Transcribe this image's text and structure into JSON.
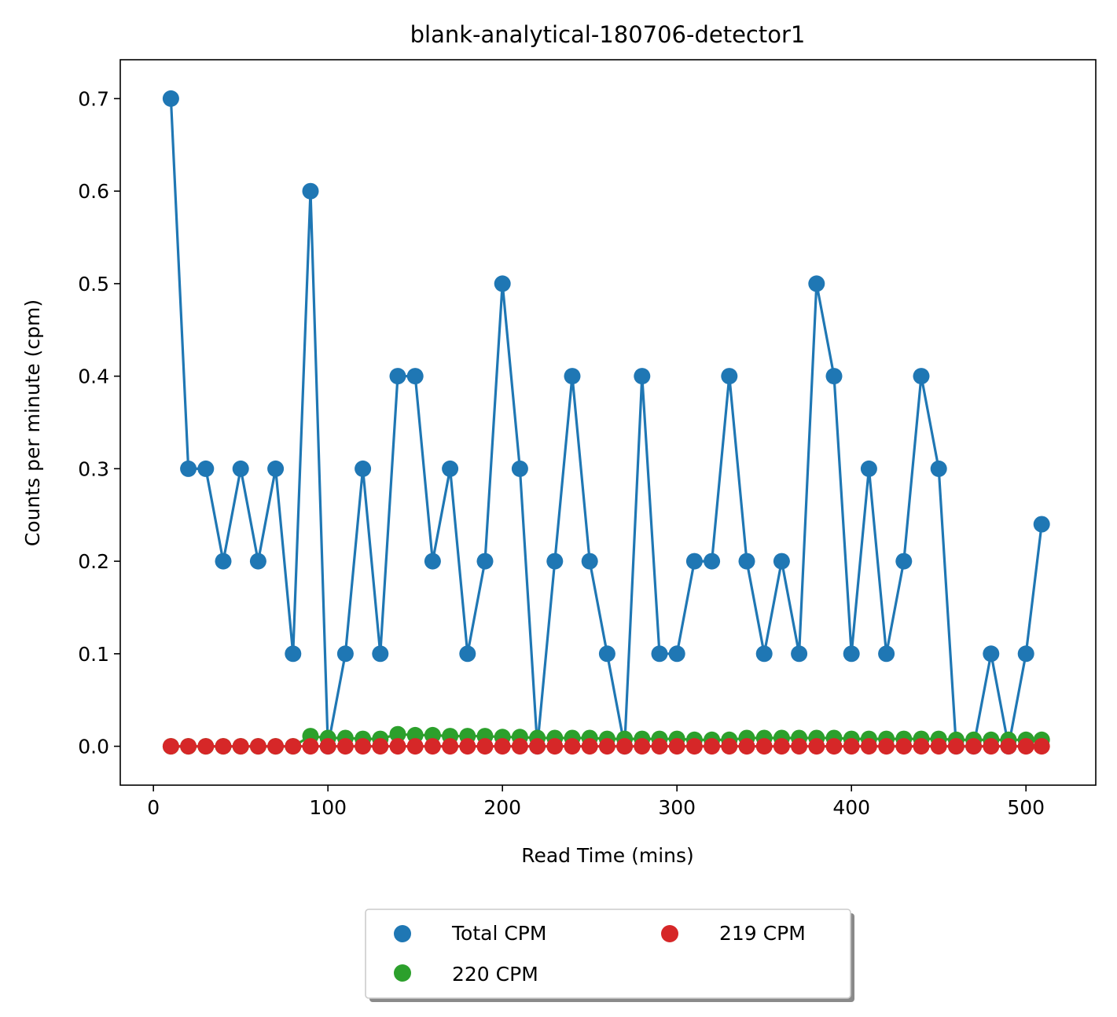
{
  "chart_data": {
    "type": "line",
    "title": "blank-analytical-180706-detector1",
    "xlabel": "Read Time (mins)",
    "ylabel": "Counts per minute (cpm)",
    "xlim": [
      -19,
      540
    ],
    "ylim": [
      -0.042,
      0.742
    ],
    "xticks": [
      0,
      100,
      200,
      300,
      400,
      500
    ],
    "yticks": [
      0.0,
      0.1,
      0.2,
      0.3,
      0.4,
      0.5,
      0.6,
      0.7
    ],
    "ytick_labels": [
      "0.0",
      "0.1",
      "0.2",
      "0.3",
      "0.4",
      "0.5",
      "0.6",
      "0.7"
    ],
    "legend_position": "below-center",
    "x": [
      10,
      20,
      30,
      40,
      50,
      60,
      70,
      80,
      90,
      100,
      110,
      120,
      130,
      140,
      150,
      160,
      170,
      180,
      190,
      200,
      210,
      220,
      230,
      240,
      250,
      260,
      270,
      280,
      290,
      300,
      310,
      320,
      330,
      340,
      350,
      360,
      370,
      380,
      390,
      400,
      410,
      420,
      430,
      440,
      450,
      460,
      470,
      480,
      490,
      500,
      509
    ],
    "series": [
      {
        "name": "Total CPM",
        "color": "#1f77b4",
        "values": [
          0.7,
          0.3,
          0.3,
          0.2,
          0.3,
          0.2,
          0.3,
          0.1,
          0.6,
          0.0,
          0.1,
          0.3,
          0.1,
          0.4,
          0.4,
          0.2,
          0.3,
          0.1,
          0.2,
          0.5,
          0.3,
          0.0,
          0.2,
          0.4,
          0.2,
          0.1,
          0.0,
          0.4,
          0.1,
          0.1,
          0.2,
          0.2,
          0.4,
          0.2,
          0.1,
          0.2,
          0.1,
          0.5,
          0.4,
          0.1,
          0.3,
          0.1,
          0.2,
          0.4,
          0.3,
          0.0,
          0.0,
          0.1,
          0.0,
          0.1,
          0.24
        ]
      },
      {
        "name": "220 CPM",
        "color": "#2ca02c",
        "values": [
          0,
          0,
          0,
          0,
          0,
          0,
          0,
          0,
          0.011,
          0.009,
          0.009,
          0.008,
          0.008,
          0.013,
          0.012,
          0.012,
          0.011,
          0.011,
          0.011,
          0.01,
          0.01,
          0.009,
          0.009,
          0.009,
          0.009,
          0.008,
          0.008,
          0.008,
          0.008,
          0.008,
          0.007,
          0.007,
          0.007,
          0.009,
          0.009,
          0.009,
          0.009,
          0.009,
          0.009,
          0.008,
          0.008,
          0.008,
          0.008,
          0.008,
          0.008,
          0.007,
          0.007,
          0.007,
          0.007,
          0.007,
          0.007
        ]
      },
      {
        "name": "219 CPM",
        "color": "#d62728",
        "values": [
          0,
          0,
          0,
          0,
          0,
          0,
          0,
          0,
          0,
          0,
          0,
          0,
          0,
          0,
          0,
          0,
          0,
          0,
          0,
          0,
          0,
          0,
          0,
          0,
          0,
          0,
          0,
          0,
          0,
          0,
          0,
          0,
          0,
          0,
          0,
          0,
          0,
          0,
          0,
          0,
          0,
          0,
          0,
          0,
          0,
          0,
          0,
          0,
          0,
          0,
          0
        ]
      }
    ]
  }
}
